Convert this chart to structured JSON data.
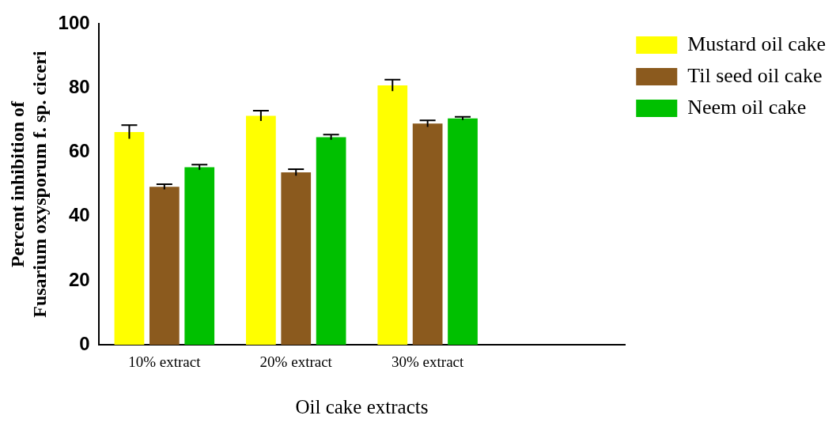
{
  "chart_data": {
    "type": "bar",
    "xlabel": "Oil cake extracts",
    "ylabel": "Percent inhibition of\nFusarium oxysporum f. sp. ciceri",
    "categories": [
      "10% extract",
      "20% extract",
      "30% extract",
      null
    ],
    "series": [
      {
        "name": "Mustard oil cake",
        "color": "#ffff00",
        "values": [
          66.3,
          71.3,
          80.8,
          null
        ],
        "errors": [
          2.1,
          1.6,
          1.8,
          null
        ]
      },
      {
        "name": "Til seed oil cake",
        "color": "#8b5a1e",
        "values": [
          49.2,
          53.7,
          68.9,
          null
        ],
        "errors": [
          0.8,
          1.0,
          1.0,
          null
        ]
      },
      {
        "name": "Neem oil cake",
        "color": "#00c000",
        "values": [
          55.3,
          64.7,
          70.5,
          null
        ],
        "errors": [
          0.8,
          0.8,
          0.5,
          null
        ]
      }
    ],
    "ylim": [
      0,
      100
    ],
    "yticks": [
      0,
      20,
      40,
      60,
      80,
      100
    ],
    "grid": false,
    "legend": "top right"
  }
}
